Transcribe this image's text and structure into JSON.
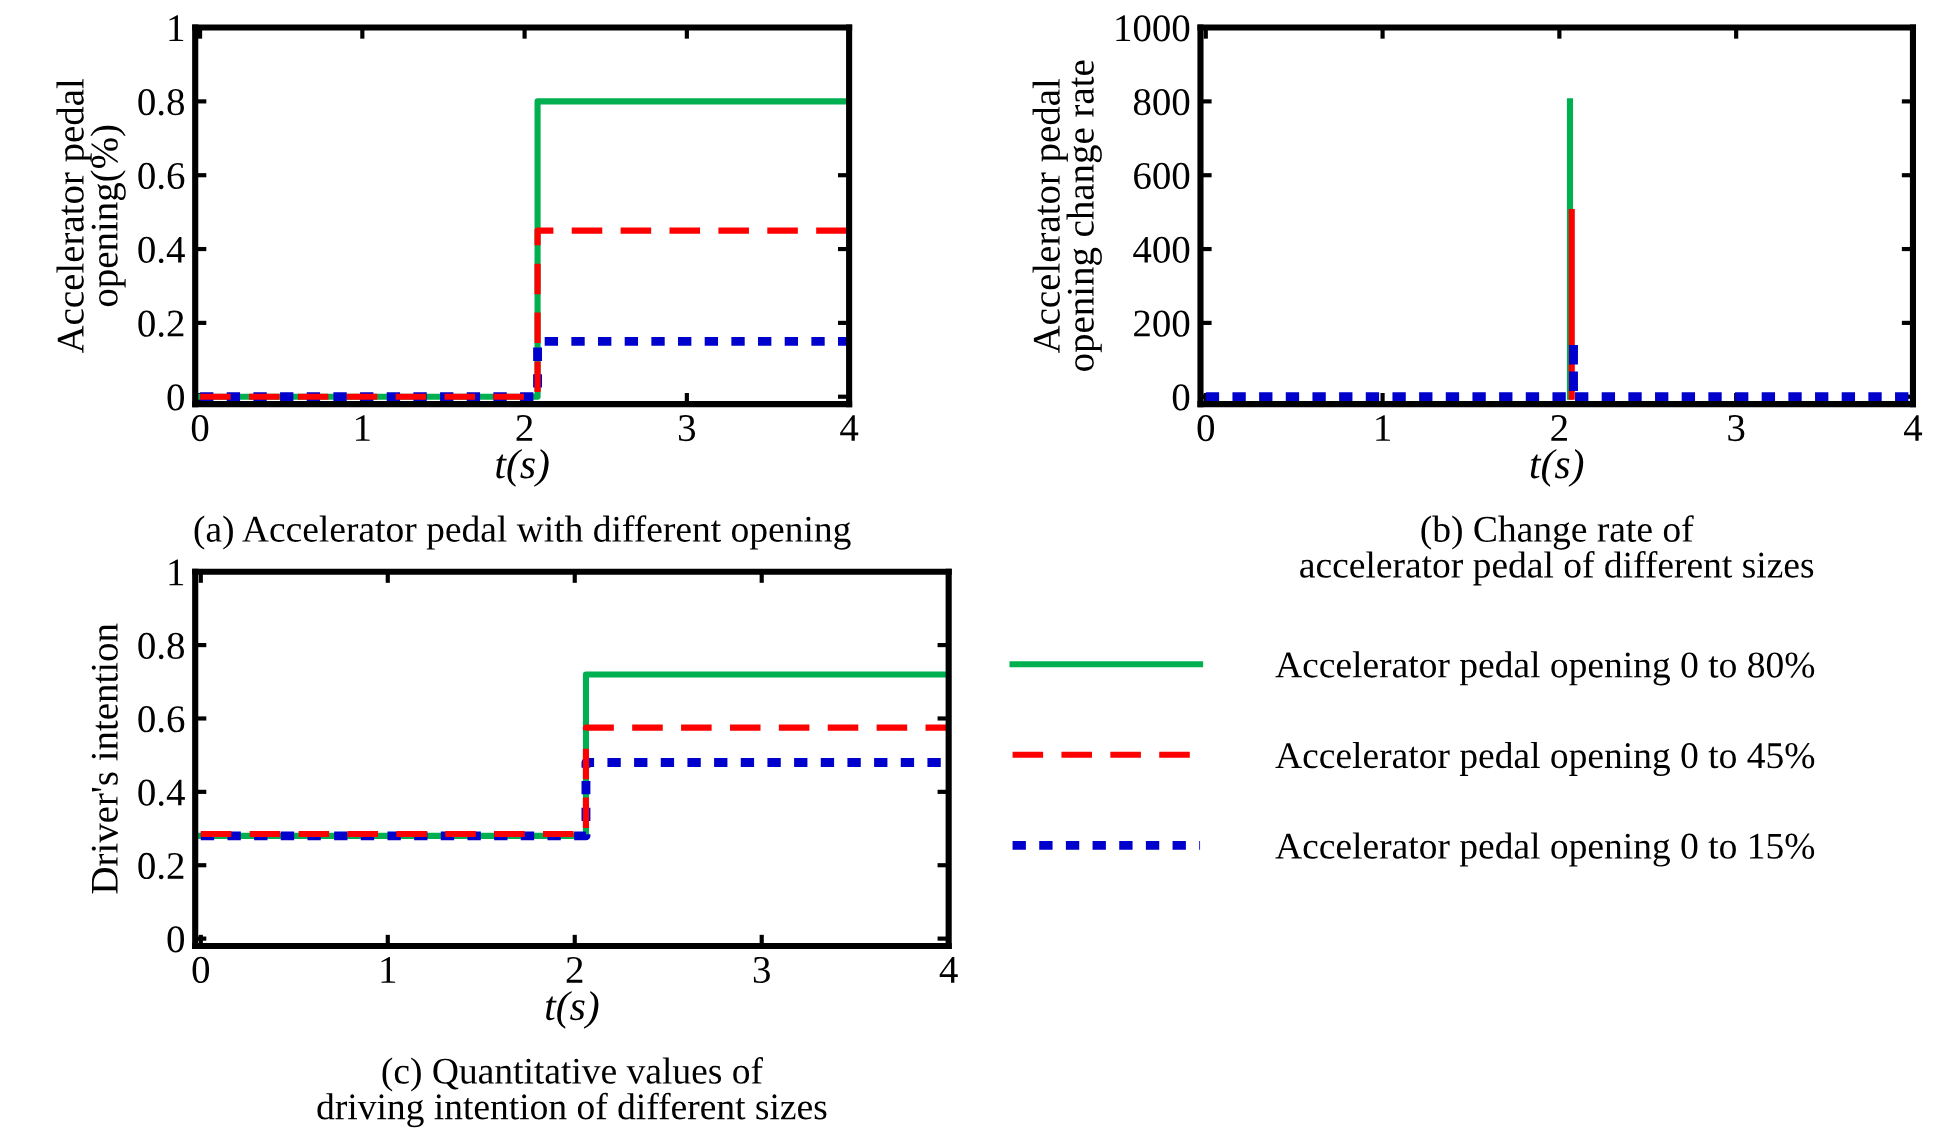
{
  "chart_data": [
    {
      "type": "step",
      "title": "(a) Accelerator pedal with different opening",
      "xlabel": "t(s)",
      "ylabel": "Accelerator pedal\nopening(%)",
      "xlim": [
        -0.03,
        4
      ],
      "xticks": [
        0,
        1,
        2,
        3,
        4
      ],
      "ylim": [
        -0.02,
        1
      ],
      "yticks": [
        0,
        0.2,
        0.4,
        0.6,
        0.8,
        1
      ],
      "grid": false,
      "legend": false,
      "series": [
        {
          "color": "#00b050",
          "line_style": "solid",
          "x": [
            0,
            2.08,
            4
          ],
          "values": [
            0,
            0.8,
            0.8
          ]
        },
        {
          "color": "#ff0000",
          "line_style": "dashed",
          "x": [
            0,
            2.08,
            4
          ],
          "values": [
            0,
            0.45,
            0.45
          ]
        },
        {
          "color": "#0000cc",
          "line_style": "dotted",
          "x": [
            0,
            2.08,
            4
          ],
          "values": [
            0,
            0.15,
            0.15
          ]
        }
      ]
    },
    {
      "type": "line",
      "title": "(b) Change rate of\naccelerator pedal of different sizes",
      "xlabel": "t(s)",
      "ylabel": "Accelerator pedal\nopening change rate",
      "xlim": [
        -0.03,
        4
      ],
      "xticks": [
        0,
        1,
        2,
        3,
        4
      ],
      "ylim": [
        -20,
        1000
      ],
      "yticks": [
        0,
        200,
        400,
        600,
        800,
        1000
      ],
      "grid": false,
      "legend": false,
      "series": [
        {
          "color": "#00b050",
          "line_style": "solid",
          "x": [
            2.06,
            2.06
          ],
          "values": [
            0,
            800
          ]
        },
        {
          "color": "#ff0000",
          "line_style": "solid",
          "x": [
            2.07,
            2.07
          ],
          "values": [
            0,
            500
          ]
        },
        {
          "color": "#0000cc",
          "line_style": "dotted",
          "x": [
            0,
            2.08,
            2.08,
            2.08,
            4
          ],
          "values": [
            0,
            0,
            150,
            0,
            0
          ]
        }
      ]
    },
    {
      "type": "step",
      "title": "(c) Quantitative values of\ndriving intention of different sizes",
      "xlabel": "t(s)",
      "ylabel": "Driver's intention",
      "xlim": [
        -0.03,
        4
      ],
      "xticks": [
        0,
        1,
        2,
        3,
        4
      ],
      "ylim": [
        -0.02,
        1
      ],
      "yticks": [
        0,
        0.2,
        0.4,
        0.6,
        0.8,
        1
      ],
      "grid": false,
      "legend": "right",
      "series": [
        {
          "name": "Accelerator pedal opening 0 to 80%",
          "color": "#00b050",
          "line_style": "solid",
          "x": [
            0,
            2.06,
            4
          ],
          "values": [
            0.28,
            0.72,
            0.72
          ]
        },
        {
          "name": "Accelerator pedal opening 0 to 45%",
          "color": "#ff0000",
          "line_style": "dashed",
          "x": [
            0,
            2.06,
            4
          ],
          "values": [
            0.285,
            0.575,
            0.575
          ]
        },
        {
          "name": "Accelerator pedal opening 0 to 15%",
          "color": "#0000cc",
          "line_style": "dotted",
          "x": [
            0,
            2.06,
            4
          ],
          "values": [
            0.28,
            0.48,
            0.48
          ]
        }
      ]
    }
  ]
}
